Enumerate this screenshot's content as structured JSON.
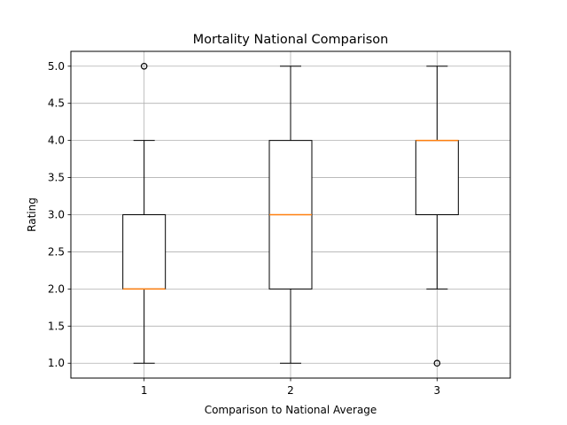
{
  "chart_data": {
    "type": "box",
    "title": "Mortality National Comparison",
    "xlabel": "Comparison to National Average",
    "ylabel": "Rating",
    "categories": [
      "1",
      "2",
      "3"
    ],
    "boxes": [
      {
        "category": "1",
        "whisker_low": 1.0,
        "q1": 2.0,
        "median": 2.0,
        "q3": 3.0,
        "whisker_high": 4.0,
        "outliers": [
          5.0
        ]
      },
      {
        "category": "2",
        "whisker_low": 1.0,
        "q1": 2.0,
        "median": 3.0,
        "q3": 4.0,
        "whisker_high": 5.0,
        "outliers": []
      },
      {
        "category": "3",
        "whisker_low": 2.0,
        "q1": 3.0,
        "median": 4.0,
        "q3": 4.0,
        "whisker_high": 5.0,
        "outliers": [
          1.0
        ]
      }
    ],
    "ylim": [
      0.8,
      5.2
    ],
    "yticks": [
      1.0,
      1.5,
      2.0,
      2.5,
      3.0,
      3.5,
      4.0,
      4.5,
      5.0
    ],
    "ytick_labels": [
      "1.0",
      "1.5",
      "2.0",
      "2.5",
      "3.0",
      "3.5",
      "4.0",
      "4.5",
      "5.0"
    ],
    "grid": true,
    "colors": {
      "box": "#000000",
      "median": "#ff7f0e",
      "grid": "#b0b0b0"
    }
  }
}
